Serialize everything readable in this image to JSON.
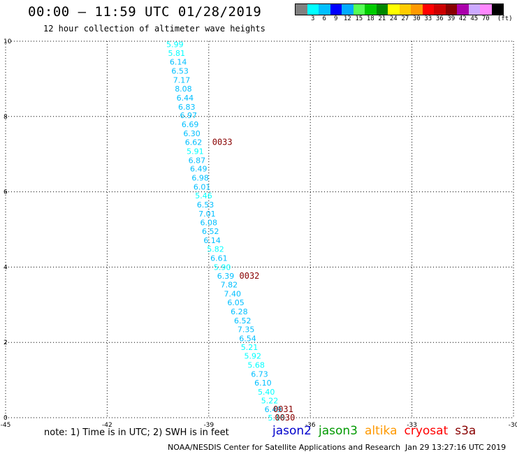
{
  "header": {
    "title": "00:00 – 11:59 UTC 01/28/2019",
    "subtitle": "12 hour collection of altimeter wave heights"
  },
  "legend": {
    "unit": "(ft)",
    "colors": [
      "#808080",
      "#00ffff",
      "#00bfff",
      "#0000ff",
      "#00aaff",
      "#55ff55",
      "#00cc00",
      "#008800",
      "#ffff00",
      "#ffcc00",
      "#ff9900",
      "#ff0000",
      "#cc0000",
      "#880000",
      "#aa00aa",
      "#ccaaff",
      "#ff88ff",
      "#000000"
    ],
    "labels": [
      "3",
      "6",
      "9",
      "12",
      "15",
      "18",
      "21",
      "24",
      "27",
      "30",
      "33",
      "36",
      "39",
      "42",
      "45",
      "70"
    ]
  },
  "chart_data": {
    "type": "scatter",
    "xlim": [
      -45,
      -30
    ],
    "ylim": [
      0,
      10
    ],
    "x_ticks": [
      "-45",
      "-42",
      "-39",
      "-36",
      "-33",
      "-30"
    ],
    "y_ticks": [
      "0",
      "2",
      "4",
      "6",
      "8",
      "10"
    ],
    "grid": true,
    "points": [
      {
        "x": -40.0,
        "y": 9.92,
        "label": "5.99",
        "color": "#00ffff"
      },
      {
        "x": -39.95,
        "y": 9.68,
        "label": "5.81",
        "color": "#00ffff"
      },
      {
        "x": -39.9,
        "y": 9.45,
        "label": "6.14",
        "color": "#00bfff"
      },
      {
        "x": -39.85,
        "y": 9.21,
        "label": "6.53",
        "color": "#00bfff"
      },
      {
        "x": -39.8,
        "y": 8.97,
        "label": "7.17",
        "color": "#00bfff"
      },
      {
        "x": -39.75,
        "y": 8.74,
        "label": "8.08",
        "color": "#00bfff"
      },
      {
        "x": -39.7,
        "y": 8.5,
        "label": "6.44",
        "color": "#00bfff"
      },
      {
        "x": -39.65,
        "y": 8.26,
        "label": "6.83",
        "color": "#00bfff"
      },
      {
        "x": -39.6,
        "y": 8.03,
        "label": "6.97",
        "color": "#00bfff"
      },
      {
        "x": -39.55,
        "y": 7.79,
        "label": "6.69",
        "color": "#00bfff"
      },
      {
        "x": -39.5,
        "y": 7.55,
        "label": "6.30",
        "color": "#00bfff"
      },
      {
        "x": -39.45,
        "y": 7.32,
        "label": "6.62",
        "color": "#00bfff"
      },
      {
        "x": -39.4,
        "y": 7.08,
        "label": "5.91",
        "color": "#00ffff"
      },
      {
        "x": -39.35,
        "y": 6.84,
        "label": "6.87",
        "color": "#00bfff"
      },
      {
        "x": -39.3,
        "y": 6.61,
        "label": "6.49",
        "color": "#00bfff"
      },
      {
        "x": -39.25,
        "y": 6.37,
        "label": "6.98",
        "color": "#00bfff"
      },
      {
        "x": -39.2,
        "y": 6.13,
        "label": "6.01",
        "color": "#00bfff"
      },
      {
        "x": -39.15,
        "y": 5.9,
        "label": "5.46",
        "color": "#00ffff"
      },
      {
        "x": -39.1,
        "y": 5.66,
        "label": "6.53",
        "color": "#00bfff"
      },
      {
        "x": -39.05,
        "y": 5.42,
        "label": "7.01",
        "color": "#00bfff"
      },
      {
        "x": -39.0,
        "y": 5.19,
        "label": "6.08",
        "color": "#00bfff"
      },
      {
        "x": -38.95,
        "y": 4.95,
        "label": "6.52",
        "color": "#00bfff"
      },
      {
        "x": -38.9,
        "y": 4.71,
        "label": "6.14",
        "color": "#00bfff"
      },
      {
        "x": -38.8,
        "y": 4.48,
        "label": "5.82",
        "color": "#00ffff"
      },
      {
        "x": -38.7,
        "y": 4.24,
        "label": "6.61",
        "color": "#00bfff"
      },
      {
        "x": -38.6,
        "y": 4.0,
        "label": "5.90",
        "color": "#00ffff"
      },
      {
        "x": -38.5,
        "y": 3.77,
        "label": "6.39",
        "color": "#00bfff"
      },
      {
        "x": -38.4,
        "y": 3.53,
        "label": "7.82",
        "color": "#00bfff"
      },
      {
        "x": -38.3,
        "y": 3.29,
        "label": "7.40",
        "color": "#00bfff"
      },
      {
        "x": -38.2,
        "y": 3.06,
        "label": "6.05",
        "color": "#00bfff"
      },
      {
        "x": -38.1,
        "y": 2.82,
        "label": "6.28",
        "color": "#00bfff"
      },
      {
        "x": -38.0,
        "y": 2.58,
        "label": "6.52",
        "color": "#00bfff"
      },
      {
        "x": -37.9,
        "y": 2.35,
        "label": "7.35",
        "color": "#00bfff"
      },
      {
        "x": -37.85,
        "y": 2.11,
        "label": "6.54",
        "color": "#00bfff"
      },
      {
        "x": -37.8,
        "y": 1.87,
        "label": "5.21",
        "color": "#00ffff"
      },
      {
        "x": -37.7,
        "y": 1.64,
        "label": "5.92",
        "color": "#00ffff"
      },
      {
        "x": -37.6,
        "y": 1.4,
        "label": "5.68",
        "color": "#00ffff"
      },
      {
        "x": -37.5,
        "y": 1.16,
        "label": "6.73",
        "color": "#00bfff"
      },
      {
        "x": -37.4,
        "y": 0.93,
        "label": "6.10",
        "color": "#00bfff"
      },
      {
        "x": -37.3,
        "y": 0.69,
        "label": "5.40",
        "color": "#00ffff"
      },
      {
        "x": -37.2,
        "y": 0.45,
        "label": "5.22",
        "color": "#00ffff"
      },
      {
        "x": -37.1,
        "y": 0.22,
        "label": "6.49",
        "color": "#00bfff"
      },
      {
        "x": -37.0,
        "y": 0.0,
        "label": "5.16",
        "color": "#00ffff"
      }
    ],
    "annotations": [
      {
        "x": -38.6,
        "y": 7.32,
        "text": "0033",
        "color": "#880000"
      },
      {
        "x": -37.8,
        "y": 3.77,
        "text": "0032",
        "color": "#880000"
      },
      {
        "x": -36.8,
        "y": 0.22,
        "text": "0031",
        "color": "#880000"
      },
      {
        "x": -36.75,
        "y": 0.0,
        "text": "0030",
        "color": "#880000"
      }
    ]
  },
  "footer": {
    "note": "note: 1) Time is in UTC; 2) SWH is in feet",
    "satellites": [
      {
        "name": "jason2",
        "color": "#0000cc"
      },
      {
        "name": "jason3",
        "color": "#009900"
      },
      {
        "name": "altika",
        "color": "#ff9900"
      },
      {
        "name": "cryosat",
        "color": "#ff0000"
      },
      {
        "name": "s3a",
        "color": "#880000"
      }
    ],
    "credit": "NOAA/NESDIS Center for Satellite Applications and Research",
    "timestamp": "Jan 29 13:27:16 UTC 2019"
  }
}
